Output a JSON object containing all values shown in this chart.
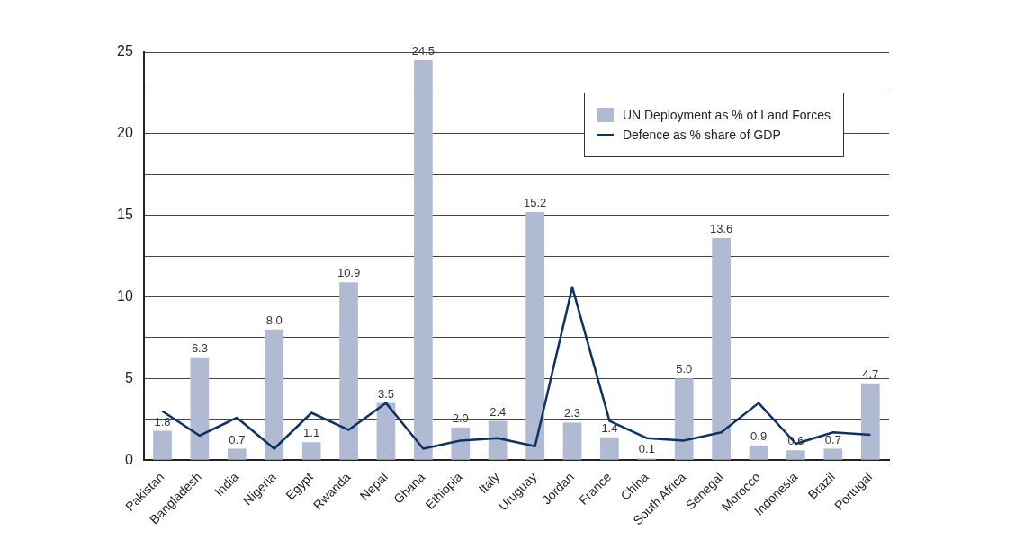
{
  "chart_data": {
    "type": "bar",
    "categories": [
      "Pakistan",
      "Bangladesh",
      "India",
      "Nigeria",
      "Egypt",
      "Rwanda",
      "Nepal",
      "Ghana",
      "Ethiopia",
      "Italy",
      "Uruguay",
      "Jordan",
      "France",
      "China",
      "South Africa",
      "Senegal",
      "Morocco",
      "Indonesia",
      "Brazil",
      "Portugal"
    ],
    "series": [
      {
        "name": "UN Deployment as % of Land Forces",
        "color": "#b0bad3",
        "values": [
          1.8,
          6.3,
          0.7,
          8.0,
          1.1,
          10.9,
          3.5,
          24.5,
          2.0,
          2.4,
          15.2,
          2.3,
          1.4,
          0.1,
          5.0,
          13.6,
          0.9,
          0.6,
          0.7,
          4.7
        ],
        "value_labels": [
          "1.8",
          "6.3",
          "0.7",
          "8.0",
          "1.1",
          "10.9",
          "3.5",
          "24.5",
          "2.0",
          "2.4",
          "15.2",
          "2.3",
          "1.4",
          "0.1",
          "5.0",
          "13.6",
          "0.9",
          "0.6",
          "0.7",
          "4.7"
        ]
      },
      {
        "name": "Defence as % share of GDP",
        "type": "line",
        "color": "#0d3265",
        "values": [
          3.0,
          1.5,
          2.6,
          0.7,
          2.9,
          1.85,
          3.5,
          0.7,
          1.2,
          1.35,
          0.85,
          10.6,
          2.4,
          1.35,
          1.2,
          1.7,
          3.5,
          1.0,
          1.7,
          1.55
        ]
      }
    ],
    "ylim": [
      0,
      25
    ],
    "yticks": [
      0,
      {
        "value": 2.5,
        "label": null
      },
      5,
      {
        "value": 7.5,
        "label": null
      },
      10,
      {
        "value": 12.5,
        "label": null
      },
      15,
      {
        "value": 17.5,
        "label": null
      },
      20,
      {
        "value": 22.5,
        "label": null
      },
      25
    ],
    "grid": "y",
    "legend": "top right",
    "marker": "none",
    "line_style": "solid"
  }
}
